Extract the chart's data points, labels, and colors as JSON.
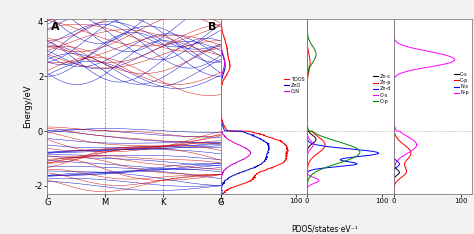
{
  "title_A": "A",
  "title_B": "B",
  "ylabel": "Energy/eV",
  "xlabel_B": "PDOS/states·eV⁻¹",
  "ylim": [
    -2.3,
    4.1
  ],
  "yticks": [
    -2,
    0,
    2,
    4
  ],
  "energy_zero": 0.0,
  "kpoints": [
    "G",
    "M",
    "K",
    "G"
  ],
  "colors": {
    "ZnO_band": "#0000CC",
    "C2N_band": "#CC0000",
    "TDOS": "#FF0000",
    "ZnO_dos": "#0000CC",
    "C2N_dos": "#CC00CC",
    "Zn_s": "#000000",
    "Zn_p": "#FF0000",
    "Zn_d": "#0000FF",
    "O_s": "#FF00FF",
    "O_p": "#008800",
    "C_s": "#000000",
    "C_p": "#FF0000",
    "N_s": "#0000FF",
    "N_p": "#FF00FF"
  },
  "background": "#F0F0F0",
  "kline_color": "#888888",
  "zero_line_color": "#888888"
}
